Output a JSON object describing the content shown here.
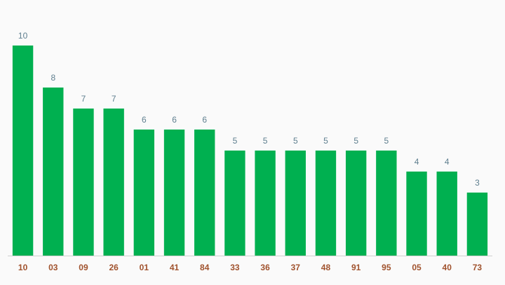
{
  "chart_data": {
    "type": "bar",
    "categories": [
      "10",
      "03",
      "09",
      "26",
      "01",
      "41",
      "84",
      "33",
      "36",
      "37",
      "48",
      "91",
      "95",
      "05",
      "40",
      "73"
    ],
    "values": [
      10,
      8,
      7,
      7,
      6,
      6,
      6,
      5,
      5,
      5,
      5,
      5,
      5,
      4,
      4,
      3
    ],
    "color": "#00b050",
    "ylim": [
      0,
      10
    ]
  }
}
